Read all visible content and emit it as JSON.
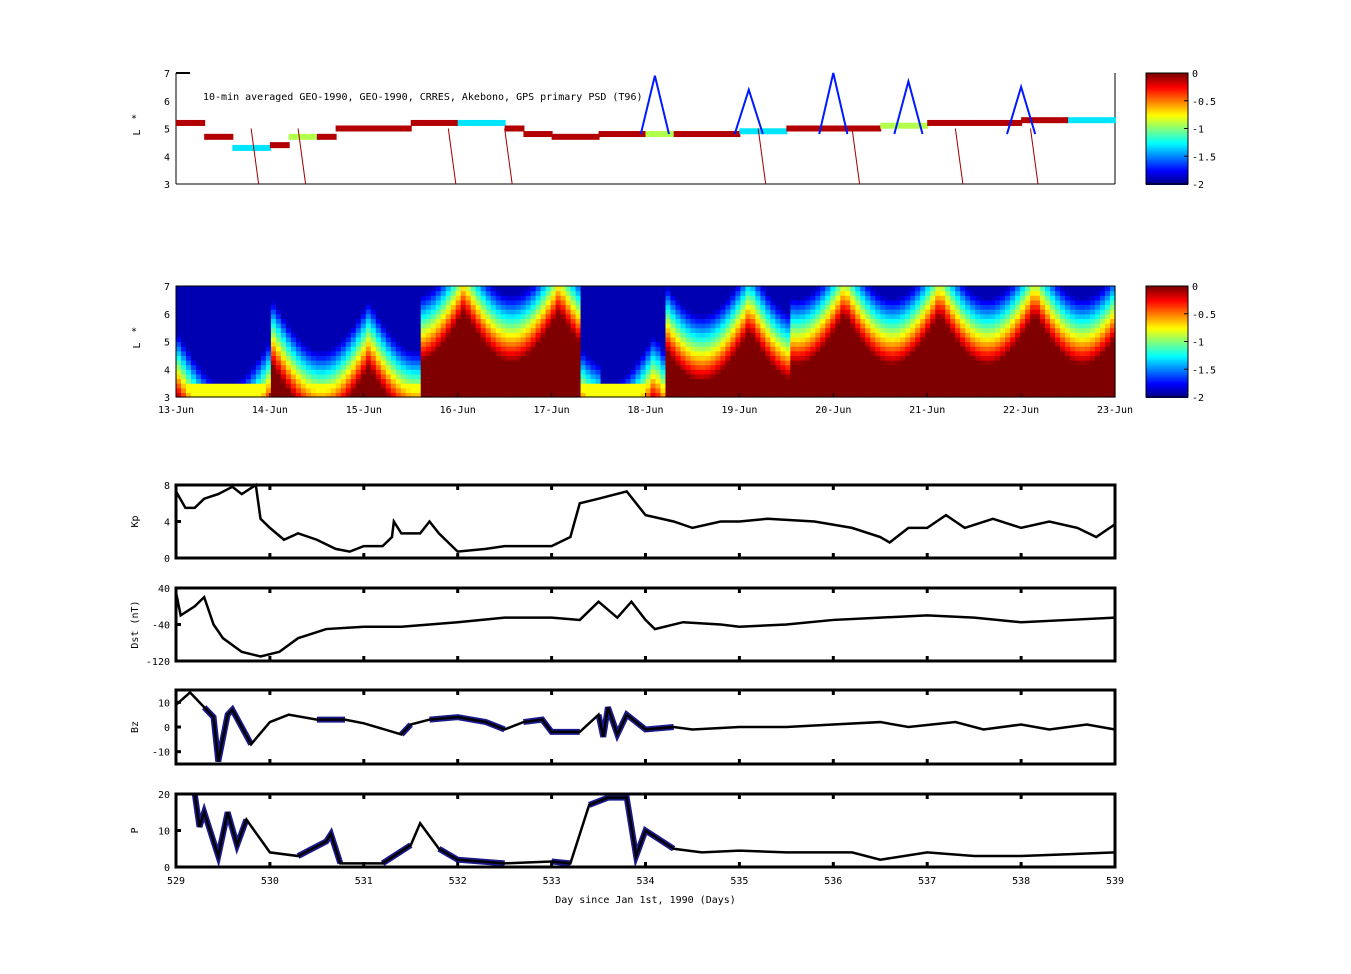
{
  "chart_data": [
    {
      "type": "heatmap",
      "title": "10-min averaged GEO-1990, GEO-1990, CRRES, Akebono, GPS  primary PSD (T96)",
      "ylabel": "L*",
      "ylim": [
        3,
        7
      ],
      "yticks": [
        "3",
        "4",
        "5",
        "6",
        "7"
      ],
      "track": [
        [
          0,
          5.2
        ],
        [
          0.3,
          4.7
        ],
        [
          0.6,
          4.3
        ],
        [
          1,
          4.4
        ],
        [
          1.2,
          4.7
        ],
        [
          1.5,
          4.7
        ],
        [
          1.7,
          5
        ],
        [
          2,
          5
        ],
        [
          2.5,
          5.2
        ],
        [
          3,
          5.2
        ],
        [
          3.5,
          5
        ],
        [
          3.7,
          4.8
        ],
        [
          4.0,
          4.7
        ],
        [
          4.5,
          4.8
        ],
        [
          5.0,
          4.8
        ],
        [
          5.3,
          4.8
        ],
        [
          6,
          4.9
        ],
        [
          6.5,
          5
        ],
        [
          7,
          5
        ],
        [
          7.5,
          5.1
        ],
        [
          8,
          5.2
        ],
        [
          8.5,
          5.2
        ],
        [
          9,
          5.3
        ],
        [
          9.5,
          5.3
        ],
        [
          10,
          5.4
        ]
      ],
      "colorbar": {
        "ticks": [
          "0",
          "-0.5",
          "-1",
          "-1.5",
          "-2"
        ],
        "range": [
          -2,
          0
        ]
      }
    },
    {
      "type": "heatmap",
      "ylabel": "L*",
      "ylim": [
        3,
        7
      ],
      "yticks": [
        "3",
        "4",
        "5",
        "6",
        "7"
      ],
      "xticks": [
        "13-Jun",
        "14-Jun",
        "15-Jun",
        "16-Jun",
        "17-Jun",
        "18-Jun",
        "19-Jun",
        "20-Jun",
        "21-Jun",
        "22-Jun",
        "23-Jun"
      ],
      "colorbar": {
        "ticks": [
          "0",
          "-0.5",
          "-1",
          "-1.5",
          "-2"
        ],
        "range": [
          -2,
          0
        ]
      }
    },
    {
      "type": "line",
      "ylabel": "Kp",
      "ylim": [
        0,
        8
      ],
      "yticks": [
        "0",
        "4",
        "8"
      ],
      "x": [
        529,
        529.1,
        529.2,
        529.3,
        529.45,
        529.6,
        529.7,
        529.85,
        529.9,
        530,
        530.15,
        530.3,
        530.5,
        530.7,
        530.85,
        531,
        531.2,
        531.3,
        531.32,
        531.4,
        531.6,
        531.7,
        531.8,
        532,
        532.3,
        532.5,
        533,
        533.2,
        533.3,
        533.5,
        533.8,
        534,
        534.3,
        534.5,
        534.8,
        535,
        535.3,
        535.8,
        536.2,
        536.5,
        536.6,
        536.8,
        537,
        537.2,
        537.4,
        537.7,
        538,
        538.3,
        538.6,
        538.8,
        539
      ],
      "y": [
        7.3,
        5.5,
        5.5,
        6.5,
        7,
        7.8,
        7,
        8,
        4.3,
        3.3,
        2,
        2.7,
        2,
        1,
        0.7,
        1.3,
        1.3,
        2.3,
        4,
        2.7,
        2.7,
        4,
        2.7,
        0.7,
        1,
        1.3,
        1.3,
        2.3,
        6,
        6.5,
        7.3,
        4.7,
        4,
        3.3,
        4,
        4,
        4.3,
        4,
        3.3,
        2.3,
        1.7,
        3.3,
        3.3,
        4.7,
        3.3,
        4.3,
        3.3,
        4,
        3.3,
        2.3,
        3.7
      ]
    },
    {
      "type": "line",
      "ylabel": "Dst (nT)",
      "ylim": [
        -120,
        40
      ],
      "yticks": [
        "40",
        "-40",
        "-120"
      ],
      "x": [
        529,
        529.05,
        529.2,
        529.3,
        529.4,
        529.5,
        529.7,
        529.9,
        530.1,
        530.3,
        530.6,
        531,
        531.4,
        532,
        532.5,
        533,
        533.3,
        533.5,
        533.7,
        533.85,
        534,
        534.1,
        534.4,
        534.8,
        535,
        535.5,
        536,
        536.5,
        537,
        537.5,
        538,
        538.5,
        539
      ],
      "y": [
        30,
        -20,
        0,
        20,
        -40,
        -70,
        -100,
        -110,
        -100,
        -70,
        -50,
        -45,
        -45,
        -35,
        -25,
        -25,
        -30,
        10,
        -25,
        10,
        -30,
        -50,
        -35,
        -40,
        -45,
        -40,
        -30,
        -25,
        -20,
        -25,
        -35,
        -30,
        -25
      ]
    },
    {
      "type": "line",
      "ylabel": "Bz",
      "ylim": [
        -15,
        15
      ],
      "yticks": [
        "10",
        "0",
        "-10"
      ],
      "x": [
        529,
        529.15,
        529.3,
        529.4,
        529.45,
        529.55,
        529.6,
        529.8,
        530,
        530.2,
        530.5,
        530.8,
        531,
        531.4,
        531.5,
        531.7,
        532,
        532.3,
        532.5,
        532.7,
        532.9,
        533,
        533.3,
        533.5,
        533.55,
        533.6,
        533.7,
        533.8,
        534,
        534.3,
        534.5,
        535,
        535.5,
        536,
        536.5,
        536.8,
        537.3,
        537.6,
        538,
        538.3,
        538.7,
        539
      ],
      "y": [
        9,
        14,
        8,
        4,
        -14,
        5,
        7,
        -7,
        2,
        5,
        3,
        3,
        1.5,
        -3,
        1,
        3,
        4,
        2,
        -1,
        2,
        3,
        -2,
        -2,
        5,
        -4,
        8,
        -3,
        5,
        -1,
        0,
        -1,
        0,
        0,
        1,
        2,
        0,
        2,
        -1,
        1,
        -1,
        1,
        -1
      ]
    },
    {
      "type": "line",
      "ylabel": "P",
      "ylim": [
        0,
        20
      ],
      "yticks": [
        "0",
        "10",
        "20"
      ],
      "xlabel": "Day since Jan 1st, 1990 (Days)",
      "xticks": [
        "529",
        "530",
        "531",
        "532",
        "533",
        "534",
        "535",
        "536",
        "537",
        "538",
        "539"
      ],
      "x": [
        529.2,
        529.25,
        529.3,
        529.45,
        529.55,
        529.65,
        529.75,
        530,
        530.3,
        530.6,
        530.65,
        530.75,
        531.2,
        531.5,
        531.6,
        531.8,
        532,
        532.5,
        533,
        533.2,
        533.4,
        533.6,
        533.8,
        533.9,
        534,
        534.3,
        534.6,
        535,
        535.5,
        536.2,
        536.5,
        537,
        537.5,
        538,
        538.5,
        539
      ],
      "y": [
        20,
        11,
        15,
        3,
        15,
        6,
        13,
        4,
        3,
        7,
        9,
        1,
        1,
        6,
        12,
        5,
        2,
        1,
        1.5,
        1,
        17,
        19,
        19,
        3,
        10,
        5,
        4,
        4.5,
        4,
        4,
        2,
        4,
        3,
        3,
        3.5,
        4
      ]
    }
  ],
  "overlay_intervals": [
    [
      529.2,
      529.8
    ],
    [
      530.3,
      530.8
    ],
    [
      531.2,
      531.5
    ],
    [
      531.7,
      532.5
    ],
    [
      532.7,
      533.3
    ],
    [
      533.4,
      534.3
    ]
  ],
  "colors": {
    "line": "#000000",
    "overlay": "#1a1a8c"
  }
}
